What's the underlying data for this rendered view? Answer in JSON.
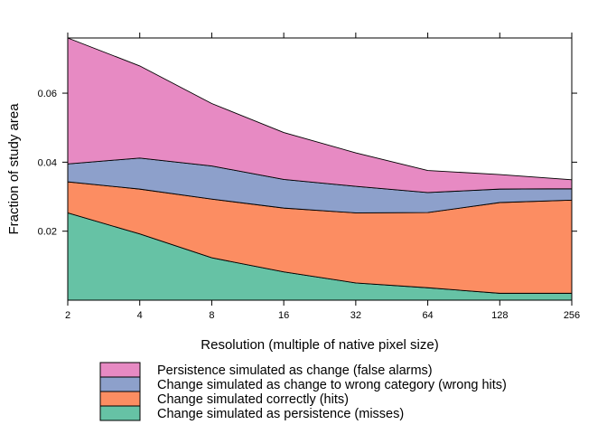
{
  "chart_data": {
    "type": "area",
    "stacked": true,
    "x": [
      2,
      4,
      8,
      16,
      32,
      64,
      128,
      256
    ],
    "x_tick_labels": [
      "2",
      "4",
      "8",
      "16",
      "32",
      "64",
      "128",
      "256"
    ],
    "x_scale": "log2",
    "xlabel": "Resolution (multiple of native pixel size)",
    "ylabel": "Fraction of study area",
    "ylim": [
      0,
      0.076
    ],
    "y_ticks": [
      0.02,
      0.04,
      0.06
    ],
    "y_tick_labels": [
      "0.02",
      "0.04",
      "0.06"
    ],
    "grid": false,
    "legend_position": "bottom",
    "series": [
      {
        "name": "Change simulated as persistence (misses)",
        "color": "#66c2a5",
        "values": [
          0.0253,
          0.0192,
          0.0123,
          0.0082,
          0.005,
          0.0036,
          0.002,
          0.002
        ]
      },
      {
        "name": "Change simulated correctly (hits)",
        "color": "#fc8d62",
        "values": [
          0.009,
          0.013,
          0.017,
          0.0185,
          0.0203,
          0.0218,
          0.0263,
          0.027
        ]
      },
      {
        "name": "Change simulated as change to wrong category (wrong hits)",
        "color": "#8da0cb",
        "values": [
          0.0052,
          0.009,
          0.0096,
          0.0083,
          0.0077,
          0.0058,
          0.0039,
          0.0033
        ]
      },
      {
        "name": "Persistence simulated as change (false alarms)",
        "color": "#e78ac3",
        "values": [
          0.0365,
          0.0267,
          0.0181,
          0.0136,
          0.0097,
          0.0064,
          0.0042,
          0.0026
        ]
      }
    ],
    "legend_order": [
      3,
      2,
      1,
      0
    ]
  }
}
